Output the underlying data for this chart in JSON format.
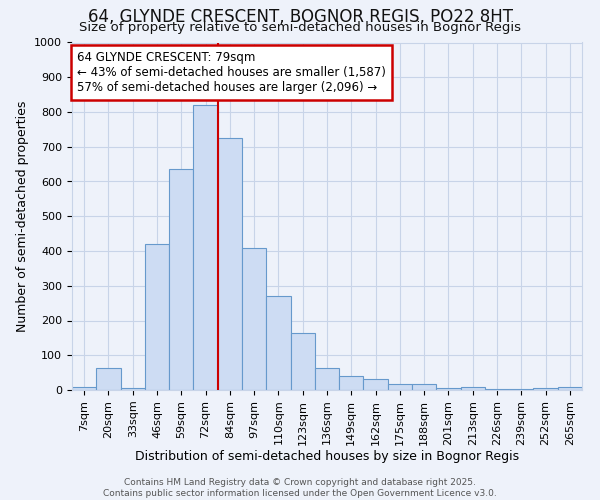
{
  "title": "64, GLYNDE CRESCENT, BOGNOR REGIS, PO22 8HT",
  "subtitle": "Size of property relative to semi-detached houses in Bognor Regis",
  "xlabel": "Distribution of semi-detached houses by size in Bognor Regis",
  "ylabel": "Number of semi-detached properties",
  "categories": [
    "7sqm",
    "20sqm",
    "33sqm",
    "46sqm",
    "59sqm",
    "72sqm",
    "84sqm",
    "97sqm",
    "110sqm",
    "123sqm",
    "136sqm",
    "149sqm",
    "162sqm",
    "175sqm",
    "188sqm",
    "201sqm",
    "213sqm",
    "226sqm",
    "239sqm",
    "252sqm",
    "265sqm"
  ],
  "values": [
    8,
    62,
    5,
    421,
    635,
    820,
    725,
    410,
    270,
    165,
    62,
    40,
    33,
    18,
    16,
    5,
    10,
    3,
    2,
    5,
    8
  ],
  "bar_color": "#cddcf3",
  "bar_edge_color": "#6699cc",
  "annotation_text": "64 GLYNDE CRESCENT: 79sqm\n← 43% of semi-detached houses are smaller (1,587)\n57% of semi-detached houses are larger (2,096) →",
  "annotation_box_color": "#ffffff",
  "annotation_box_edge_color": "#cc0000",
  "vertical_line_color": "#cc0000",
  "ylim": [
    0,
    1000
  ],
  "grid_color": "#c8d4e8",
  "background_color": "#eef2fa",
  "footer_line1": "Contains HM Land Registry data © Crown copyright and database right 2025.",
  "footer_line2": "Contains public sector information licensed under the Open Government Licence v3.0.",
  "title_fontsize": 12,
  "subtitle_fontsize": 9.5,
  "label_fontsize": 9,
  "tick_fontsize": 8,
  "footer_fontsize": 6.5
}
